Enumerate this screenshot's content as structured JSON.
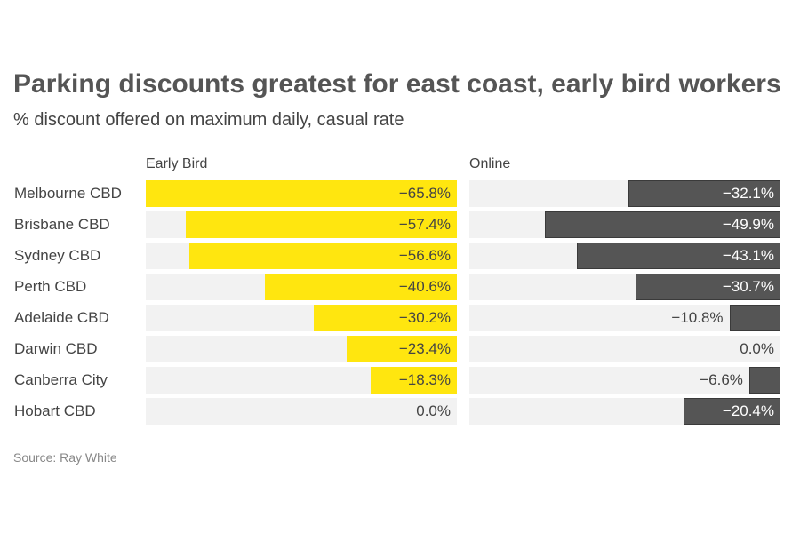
{
  "title": "Parking discounts greatest for east coast, early bird workers",
  "subtitle": "% discount offered on maximum daily, casual rate",
  "source": "Source: Ray White",
  "chart_data": {
    "type": "bar",
    "orientation": "horizontal",
    "categories": [
      "Melbourne CBD",
      "Brisbane CBD",
      "Sydney CBD",
      "Perth CBD",
      "Adelaide CBD",
      "Darwin CBD",
      "Canberra City",
      "Hobart CBD"
    ],
    "max_abs": 65.8,
    "series": [
      {
        "name": "Early Bird",
        "color": "#ffe60f",
        "text_color": "#444444",
        "values": [
          -65.8,
          -57.4,
          -56.6,
          -40.6,
          -30.2,
          -23.4,
          -18.3,
          0.0
        ]
      },
      {
        "name": "Online",
        "color": "#555555",
        "text_color": "#ffffff",
        "values": [
          -32.1,
          -49.9,
          -43.1,
          -30.7,
          -10.8,
          0.0,
          -6.6,
          -20.4
        ]
      }
    ]
  }
}
